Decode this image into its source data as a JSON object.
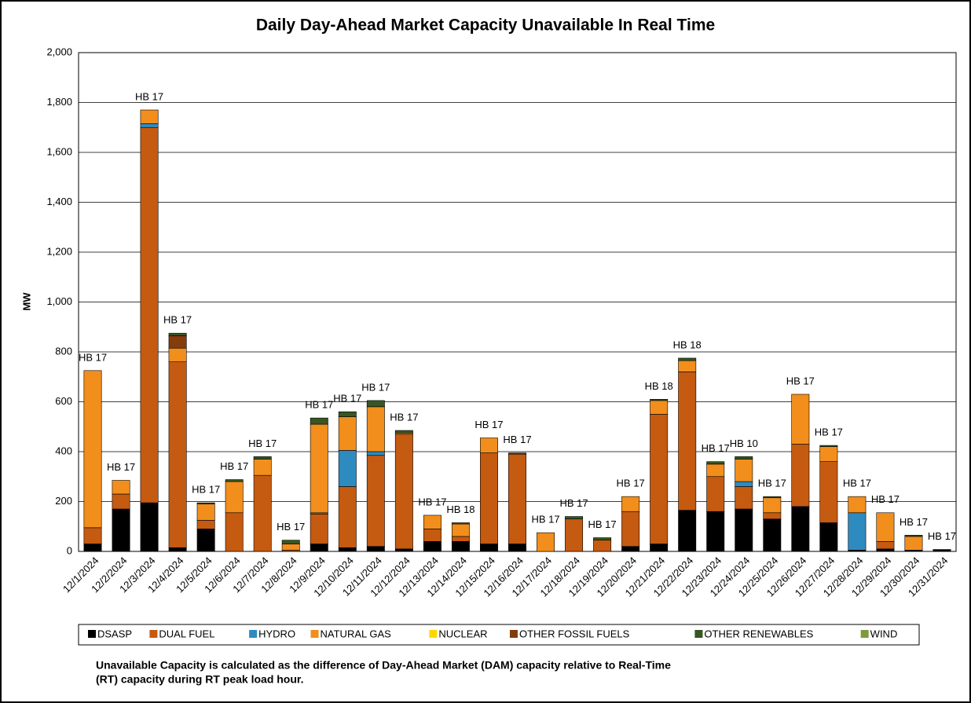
{
  "chart_data": {
    "type": "stacked_bar",
    "title": "Daily Day-Ahead Market Capacity Unavailable In Real Time",
    "y_label": "MW",
    "footnote": [
      "Unavailable Capacity is calculated as the difference of Day-Ahead Market (DAM) capacity relative to Real-Time",
      "(RT) capacity during RT peak load hour."
    ],
    "categories": [
      "12/1/2024",
      "12/2/2024",
      "12/3/2024",
      "12/4/2024",
      "12/5/2024",
      "12/6/2024",
      "12/7/2024",
      "12/8/2024",
      "12/9/2024",
      "12/10/2024",
      "12/11/2024",
      "12/12/2024",
      "12/13/2024",
      "12/14/2024",
      "12/15/2024",
      "12/16/2024",
      "12/17/2024",
      "12/18/2024",
      "12/19/2024",
      "12/20/2024",
      "12/21/2024",
      "12/22/2024",
      "12/23/2024",
      "12/24/2024",
      "12/25/2024",
      "12/26/2024",
      "12/27/2024",
      "12/28/2024",
      "12/29/2024",
      "12/30/2024",
      "12/31/2024"
    ],
    "annotations": [
      "HB 17",
      "HB 17",
      "HB 17",
      "HB 17",
      "HB 17",
      "HB 17",
      "HB 17",
      "HB 17",
      "HB 17",
      "HB 17",
      "HB 17",
      "HB 17",
      "HB 17",
      "HB 18",
      "HB 17",
      "HB 17",
      "HB 17",
      "HB 17",
      "HB 17",
      "HB 17",
      "HB 18",
      "HB 18",
      "HB 17",
      "HB 10",
      "HB 17",
      "HB 17",
      "HB 17",
      "HB 17",
      "HB 17",
      "HB 17",
      "HB 17"
    ],
    "series": [
      {
        "name": "DSASP",
        "color": "#000000",
        "values": [
          30,
          170,
          195,
          15,
          90,
          0,
          0,
          0,
          30,
          15,
          20,
          10,
          40,
          40,
          30,
          30,
          0,
          0,
          0,
          20,
          30,
          165,
          160,
          170,
          130,
          180,
          115,
          5,
          10,
          5,
          5
        ]
      },
      {
        "name": "DUAL FUEL",
        "color": "#c55a11",
        "values": [
          65,
          60,
          1505,
          745,
          35,
          155,
          305,
          5,
          120,
          245,
          365,
          460,
          50,
          20,
          365,
          360,
          0,
          130,
          45,
          140,
          520,
          555,
          140,
          90,
          25,
          250,
          245,
          0,
          30,
          0,
          3
        ]
      },
      {
        "name": "HYDRO",
        "color": "#2e8bc0",
        "values": [
          0,
          0,
          15,
          0,
          0,
          0,
          0,
          0,
          5,
          145,
          15,
          0,
          0,
          0,
          0,
          0,
          0,
          0,
          0,
          0,
          0,
          0,
          0,
          20,
          0,
          0,
          0,
          150,
          0,
          0,
          0
        ]
      },
      {
        "name": "NATURAL GAS",
        "color": "#f28e1c",
        "values": [
          630,
          55,
          55,
          55,
          65,
          125,
          65,
          25,
          355,
          135,
          180,
          5,
          55,
          50,
          60,
          0,
          75,
          0,
          0,
          60,
          55,
          45,
          50,
          90,
          60,
          200,
          60,
          65,
          115,
          55,
          0
        ]
      },
      {
        "name": "NUCLEAR",
        "color": "#ffd700",
        "values": [
          0,
          0,
          0,
          0,
          0,
          0,
          0,
          0,
          0,
          0,
          0,
          0,
          0,
          0,
          0,
          0,
          0,
          0,
          0,
          0,
          0,
          0,
          0,
          0,
          0,
          0,
          0,
          0,
          0,
          0,
          0
        ]
      },
      {
        "name": "OTHER FOSSIL FUELS",
        "color": "#843c0c",
        "values": [
          0,
          0,
          0,
          50,
          0,
          0,
          0,
          0,
          0,
          0,
          0,
          0,
          0,
          0,
          0,
          0,
          0,
          0,
          0,
          0,
          0,
          0,
          0,
          0,
          0,
          0,
          0,
          0,
          0,
          0,
          0
        ]
      },
      {
        "name": "OTHER RENEWABLES",
        "color": "#375623",
        "values": [
          0,
          0,
          0,
          10,
          5,
          8,
          10,
          15,
          25,
          20,
          25,
          10,
          0,
          5,
          0,
          5,
          0,
          10,
          10,
          0,
          5,
          10,
          10,
          10,
          5,
          0,
          5,
          0,
          0,
          5,
          0
        ]
      },
      {
        "name": "WIND",
        "color": "#7f9a3a",
        "values": [
          0,
          0,
          0,
          0,
          0,
          0,
          0,
          0,
          0,
          0,
          0,
          0,
          0,
          0,
          0,
          0,
          0,
          0,
          0,
          0,
          0,
          0,
          0,
          0,
          0,
          0,
          0,
          0,
          0,
          0,
          0
        ]
      }
    ],
    "ylim": [
      0,
      2000
    ],
    "yticks": [
      0,
      200,
      400,
      600,
      800,
      {
        "value": 1000,
        "label": "1,000"
      },
      {
        "value": 1200,
        "label": "1,200"
      },
      {
        "value": 1400,
        "label": "1,400"
      },
      {
        "value": 1600,
        "label": "1,600"
      },
      {
        "value": 1800,
        "label": "1,800"
      },
      {
        "value": 2000,
        "label": "2,000"
      }
    ],
    "grid": true
  }
}
